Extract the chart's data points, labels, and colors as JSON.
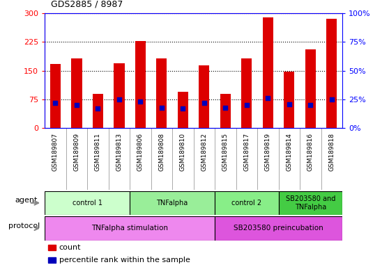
{
  "title": "GDS2885 / 8987",
  "samples": [
    "GSM189807",
    "GSM189809",
    "GSM189811",
    "GSM189813",
    "GSM189806",
    "GSM189808",
    "GSM189810",
    "GSM189812",
    "GSM189815",
    "GSM189817",
    "GSM189819",
    "GSM189814",
    "GSM189816",
    "GSM189818"
  ],
  "counts": [
    168,
    183,
    90,
    170,
    228,
    183,
    95,
    165,
    90,
    183,
    290,
    148,
    205,
    285
  ],
  "percentile_ranks": [
    22,
    20,
    17,
    25,
    23,
    18,
    17,
    22,
    18,
    20,
    26,
    21,
    20,
    25
  ],
  "ylim_left": [
    0,
    300
  ],
  "ylim_right": [
    0,
    100
  ],
  "yticks_left": [
    0,
    75,
    150,
    225,
    300
  ],
  "yticks_right": [
    0,
    25,
    50,
    75,
    100
  ],
  "bar_color": "#dd0000",
  "dot_color": "#0000bb",
  "grid_color": "#000000",
  "agent_groups": [
    {
      "label": "control 1",
      "start": 0,
      "end": 4,
      "color": "#ccffcc"
    },
    {
      "label": "TNFalpha",
      "start": 4,
      "end": 8,
      "color": "#99ee99"
    },
    {
      "label": "control 2",
      "start": 8,
      "end": 11,
      "color": "#88ee88"
    },
    {
      "label": "SB203580 and\nTNFalpha",
      "start": 11,
      "end": 14,
      "color": "#44cc44"
    }
  ],
  "protocol_groups": [
    {
      "label": "TNFalpha stimulation",
      "start": 0,
      "end": 8,
      "color": "#ee88ee"
    },
    {
      "label": "SB203580 preincubation",
      "start": 8,
      "end": 14,
      "color": "#dd55dd"
    }
  ],
  "xtick_bg_color": "#cccccc",
  "left_label_color": "#ff0000",
  "right_label_color": "#0000ff"
}
